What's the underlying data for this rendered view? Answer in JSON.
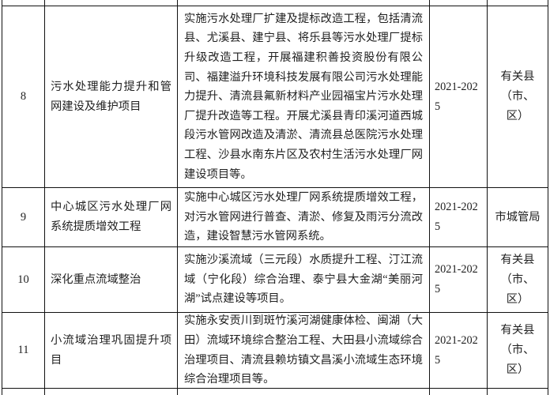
{
  "colors": {
    "border": "#111111",
    "text": "#1f1f1f",
    "background": "#ffffff"
  },
  "table": {
    "rows": [
      {
        "index": "8",
        "name": "污水处理能力提升和管网建设及维护项目",
        "description": "实施污水处理厂扩建及提标改造工程，包括清流县、尤溪县、建宁县、将乐县等污水处理厂提标升级改造工程，开展福建积善投资股份有限公司、福建溢升环境科技发展有限公司污水处理能力提升、清流县氟新材料产业园福宝片污水处理厂提升改造等工程。开展尤溪县青印溪河道西城段污水管网改造及清淤、清流县总医院污水处理工程、沙县水南东片区及农村生活污水处理厂网建设项目等。",
        "period": "2021-2025",
        "responsible": "有关县（市、区）"
      },
      {
        "index": "9",
        "name": "中心城区污水处理厂网系统提质增效工程",
        "description": "实施中心城区污水处理厂网系统提质增效工程，对污水管网进行普查、清淤、修复及雨污分流改造，建设智慧污水管网系统。",
        "period": "2021-2025",
        "responsible": "市城管局"
      },
      {
        "index": "10",
        "name": "深化重点流域整治",
        "description": "实施沙溪流域（三元段）水质提升工程、汀江流域（宁化段）综合治理、泰宁县大金湖“美丽河湖”试点建设等项目。",
        "period": "2021-2025",
        "responsible": "有关县（市、区）"
      },
      {
        "index": "11",
        "name": "小流域治理巩固提升项目",
        "description": "实施永安贡川到斑竹溪河湖健康体检、闽湖（大田）流域环境综合整治工程、大田县小流域综合治理项目、清流县赖坊镇文昌溪小流域生态环境综合治理项目等。",
        "period": "2021-2025",
        "responsible": "有关县（市、区）"
      }
    ]
  }
}
